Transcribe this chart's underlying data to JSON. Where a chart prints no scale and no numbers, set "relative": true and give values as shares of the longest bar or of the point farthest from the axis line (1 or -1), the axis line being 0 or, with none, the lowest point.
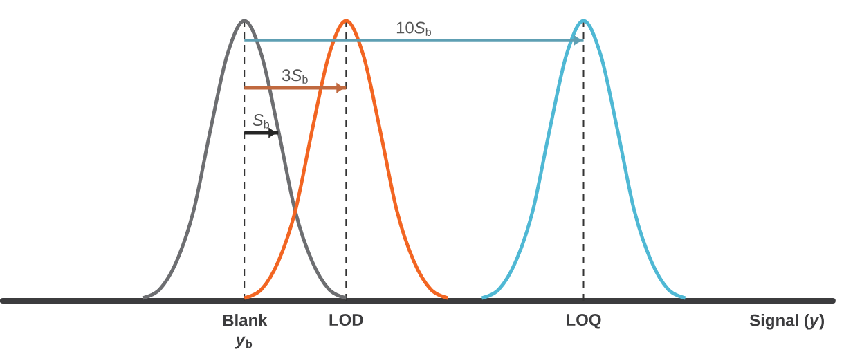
{
  "chart_data": {
    "type": "line",
    "relative": true,
    "categories": [
      null,
      null,
      null,
      null,
      null,
      null,
      null,
      null,
      null,
      null,
      null,
      null,
      null,
      null,
      "Blank *y*$_{b}$",
      null,
      null,
      null,
      null,
      null,
      "LOD",
      null,
      null,
      null,
      null,
      null,
      null,
      null,
      null,
      null,
      null,
      null,
      null,
      null,
      "LOQ",
      null,
      null,
      null,
      null,
      null,
      null,
      null,
      null,
      null,
      null,
      null,
      "Signal (*y*)",
      null,
      null
    ],
    "series": [
      {
        "color": "#6d6e71",
        "values": [
          null,
          null,
          null,
          null,
          null,
          null,
          null,
          null,
          0.01,
          0.04,
          0.14,
          0.32,
          0.61,
          0.88,
          1,
          0.88,
          0.61,
          0.32,
          0.14,
          0.04,
          0.01,
          null,
          null,
          null,
          null,
          null,
          null,
          null,
          null,
          null,
          null,
          null,
          null,
          null,
          null,
          null,
          null,
          null,
          null,
          null,
          null,
          null,
          null,
          null,
          null,
          null,
          null,
          null,
          null
        ]
      },
      {
        "color": "#f26522",
        "values": [
          null,
          null,
          null,
          null,
          null,
          null,
          null,
          null,
          null,
          null,
          null,
          null,
          null,
          null,
          0.01,
          0.04,
          0.14,
          0.32,
          0.61,
          0.88,
          1,
          0.88,
          0.61,
          0.32,
          0.14,
          0.04,
          0.01,
          null,
          null,
          null,
          null,
          null,
          null,
          null,
          null,
          null,
          null,
          null,
          null,
          null,
          null,
          null,
          null,
          null,
          null,
          null,
          null,
          null,
          null
        ]
      },
      {
        "color": "#4fb8d4",
        "values": [
          null,
          null,
          null,
          null,
          null,
          null,
          null,
          null,
          null,
          null,
          null,
          null,
          null,
          null,
          null,
          null,
          null,
          null,
          null,
          null,
          null,
          null,
          null,
          null,
          null,
          null,
          null,
          null,
          0.01,
          0.04,
          0.14,
          0.32,
          0.61,
          0.88,
          1,
          0.88,
          0.61,
          0.32,
          0.14,
          0.04,
          0.01,
          null,
          null,
          null,
          null,
          null,
          null,
          null,
          null
        ]
      },
      {
        "color": "#5e9fb3",
        "values": [
          null,
          null,
          null,
          null,
          null,
          null,
          null,
          null,
          null,
          null,
          null,
          null,
          null,
          null,
          0.93,
          0.93,
          0.93,
          0.93,
          0.93,
          0.93,
          0.93,
          0.93,
          0.93,
          0.93,
          0.93,
          0.93,
          0.93,
          0.93,
          0.93,
          0.93,
          0.93,
          0.93,
          0.93,
          0.93,
          0.93,
          null,
          null,
          null,
          null,
          null,
          null,
          null,
          null,
          null,
          null,
          null,
          null,
          null,
          null
        ]
      },
      {
        "color": "#c0693f",
        "values": [
          null,
          null,
          null,
          null,
          null,
          null,
          null,
          null,
          null,
          null,
          null,
          null,
          null,
          null,
          0.76,
          0.76,
          0.76,
          0.76,
          0.76,
          0.76,
          0.76,
          null,
          null,
          null,
          null,
          null,
          null,
          null,
          null,
          null,
          null,
          null,
          null,
          null,
          null,
          null,
          null,
          null,
          null,
          null,
          null,
          null,
          null,
          null,
          null,
          null,
          null,
          null,
          null
        ]
      },
      {
        "color": "#262626",
        "values": [
          null,
          null,
          null,
          null,
          null,
          null,
          null,
          null,
          null,
          null,
          null,
          null,
          null,
          null,
          0.6,
          0.6,
          0.6,
          null,
          null,
          null,
          null,
          null,
          null,
          null,
          null,
          null,
          null,
          null,
          null,
          null,
          null,
          null,
          null,
          null,
          null,
          null,
          null,
          null,
          null,
          null,
          null,
          null,
          null,
          null,
          null,
          null,
          null,
          null,
          null
        ]
      }
    ],
    "ref_lines": [
      {
        "axis": "x",
        "value": "Blank *y*$_{b}$",
        "line_style": "dashed",
        "color": "#333333"
      },
      {
        "axis": "x",
        "value": "LOD",
        "line_style": "dashed",
        "color": "#333333"
      },
      {
        "axis": "x",
        "value": "LOQ",
        "line_style": "dashed",
        "color": "#333333"
      }
    ],
    "annotations": [
      "\\text{10}\\textit{S}_{\\text{b}}",
      "\\text{3}\\textit{S}_{\\text{b}}",
      "\\textit{S}_{\\text{b}}"
    ]
  }
}
